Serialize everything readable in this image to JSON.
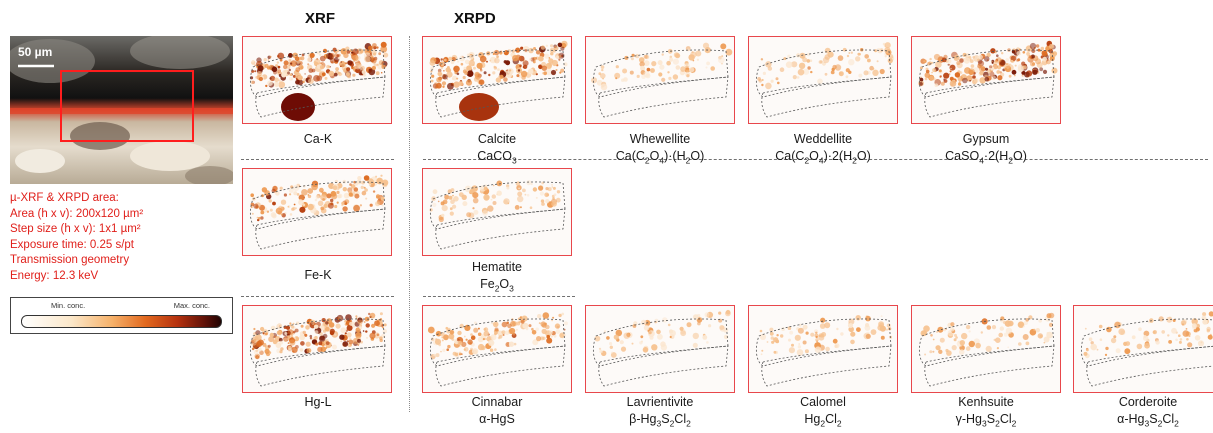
{
  "headers": {
    "xrf": "XRF",
    "xrpd": "XRPD"
  },
  "micrograph": {
    "scale_label": "50 µm",
    "box_color": "#ff1d1d"
  },
  "info_lines": [
    "µ-XRF & XRPD area:",
    "Area (h x v): 200x120 µm²",
    "Step size (h x v): 1x1 µm²",
    "Exposure time: 0.25 s/pt",
    "Transmission geometry",
    "Energy: 12.3 keV"
  ],
  "colorbar": {
    "min_label": "Min. conc.",
    "max_label": "Max. conc."
  },
  "xrf_maps": [
    {
      "name": "Ca-K"
    },
    {
      "name": "Fe-K"
    },
    {
      "name": "Hg-L"
    }
  ],
  "xrpd_maps": [
    {
      "name": "Calcite",
      "formula": "CaCO3"
    },
    {
      "name": "Whewellite",
      "formula": "Ca(C2O4)·(H2O)"
    },
    {
      "name": "Weddellite",
      "formula": "Ca(C2O4)·2(H2O)"
    },
    {
      "name": "Gypsum",
      "formula": "CaSO4·2(H2O)"
    },
    {
      "name": "Hematite",
      "formula": "Fe2O3"
    },
    {
      "name": "Cinnabar",
      "formula": "α-HgS"
    },
    {
      "name": "Lavrientivite",
      "formula": "β-Hg3S2Cl2"
    },
    {
      "name": "Calomel",
      "formula": "Hg2Cl2"
    },
    {
      "name": "Kenhsuite",
      "formula": "γ-Hg3S2Cl2"
    },
    {
      "name": "Corderoite",
      "formula": "α-Hg3S2Cl2"
    }
  ],
  "colors": {
    "panel_border": "#e8474c",
    "info_text": "#e0201b"
  }
}
